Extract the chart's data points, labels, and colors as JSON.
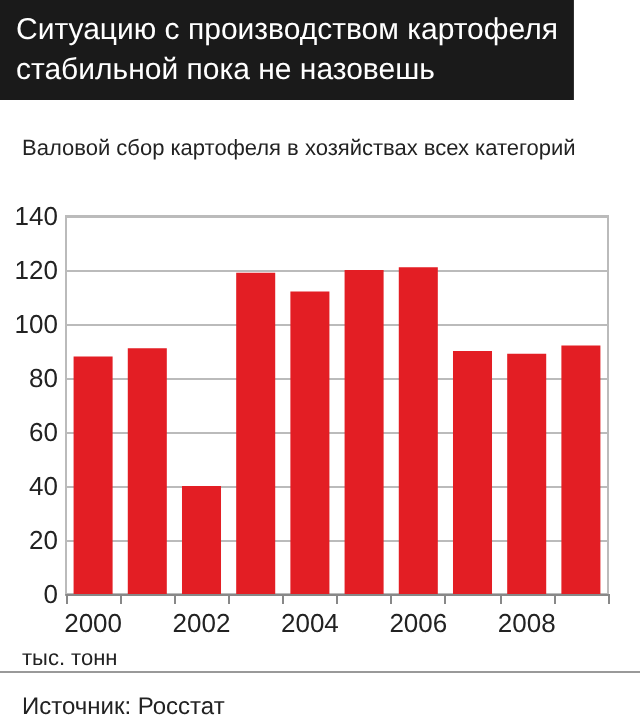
{
  "chart_data": {
    "type": "bar",
    "title": "Ситуацию с производством картофеля стабильной пока не назовешь",
    "subtitle": "Валовой сбор картофеля в хозяйствах всех категорий",
    "ylabel": "тыс. тонн",
    "annotations": [
      "Источник: Росстат"
    ],
    "categories": [
      "2000",
      null,
      "2002",
      null,
      "2004",
      null,
      "2006",
      null,
      "2008",
      null
    ],
    "values": [
      88,
      91,
      40,
      119,
      112,
      120,
      121,
      90,
      89,
      92
    ],
    "color": "#e31e24",
    "ylim": [
      0,
      140
    ],
    "yticks": [
      0,
      20,
      40,
      60,
      80,
      100,
      120,
      140
    ],
    "grid": "y"
  }
}
